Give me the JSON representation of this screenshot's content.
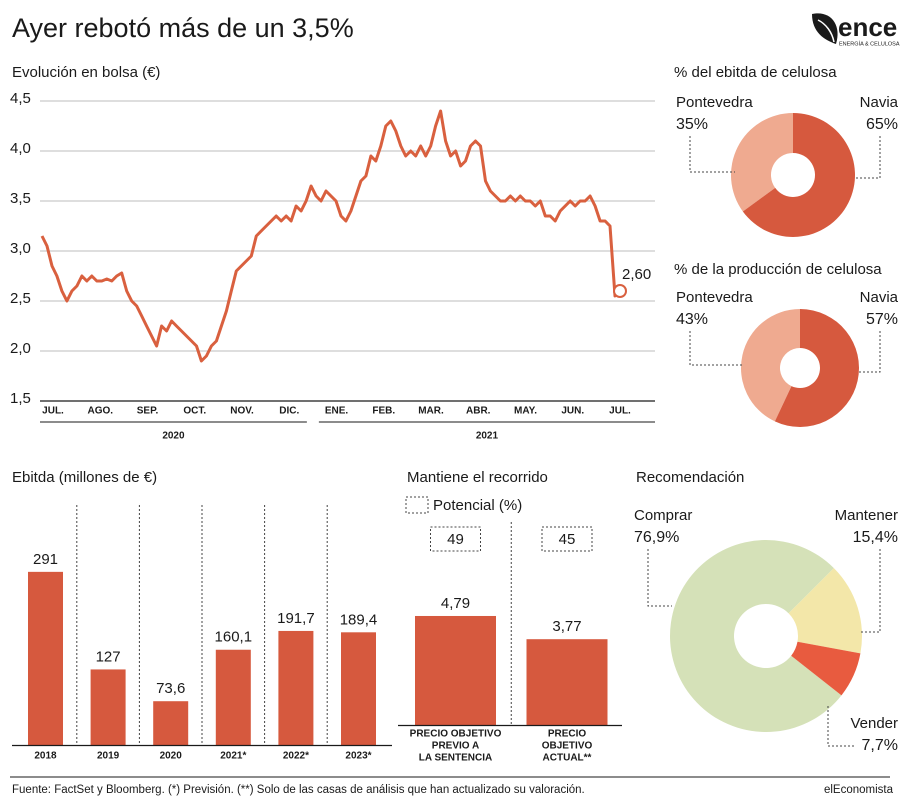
{
  "header": {
    "title": "Ayer rebotó más de un 3,5%",
    "logo": "ence",
    "logo_tagline": "ENERGÍA & CELULOSA"
  },
  "chart_data": [
    {
      "type": "line",
      "title": "Evolución en bolsa (€)",
      "months": [
        "JUL.",
        "AGO.",
        "SEP.",
        "OCT.",
        "NOV.",
        "DIC.",
        "ENE.",
        "FEB.",
        "MAR.",
        "ABR.",
        "MAY.",
        "JUN.",
        "JUL."
      ],
      "years": [
        "2020",
        "2021"
      ],
      "values": [
        3.15,
        3.05,
        2.85,
        2.75,
        2.6,
        2.5,
        2.6,
        2.65,
        2.75,
        2.7,
        2.75,
        2.7,
        2.7,
        2.72,
        2.7,
        2.75,
        2.78,
        2.6,
        2.5,
        2.45,
        2.35,
        2.25,
        2.15,
        2.05,
        2.25,
        2.2,
        2.3,
        2.25,
        2.2,
        2.15,
        2.1,
        2.05,
        1.9,
        1.95,
        2.05,
        2.1,
        2.25,
        2.4,
        2.6,
        2.8,
        2.85,
        2.9,
        2.95,
        3.15,
        3.2,
        3.25,
        3.3,
        3.35,
        3.3,
        3.35,
        3.3,
        3.45,
        3.4,
        3.5,
        3.65,
        3.55,
        3.5,
        3.6,
        3.55,
        3.5,
        3.35,
        3.3,
        3.4,
        3.55,
        3.7,
        3.75,
        3.95,
        3.9,
        4.05,
        4.25,
        4.3,
        4.2,
        4.05,
        3.95,
        4.0,
        3.95,
        4.05,
        3.95,
        4.05,
        4.25,
        4.4,
        4.1,
        3.95,
        4.0,
        3.85,
        3.9,
        4.05,
        4.1,
        4.05,
        3.7,
        3.6,
        3.55,
        3.5,
        3.5,
        3.55,
        3.5,
        3.55,
        3.5,
        3.5,
        3.45,
        3.5,
        3.35,
        3.35,
        3.3,
        3.4,
        3.45,
        3.5,
        3.45,
        3.5,
        3.5,
        3.55,
        3.45,
        3.3,
        3.3,
        3.25,
        2.55,
        2.6
      ],
      "last_value_label": "2,60",
      "color": "#d9603f",
      "ylim": [
        1.5,
        4.5
      ],
      "yticks": [
        {
          "value": 1.5,
          "label": "1,5"
        },
        {
          "value": 2.0,
          "label": "2,0"
        },
        {
          "value": 2.5,
          "label": "2,5"
        },
        {
          "value": 3.0,
          "label": "3,0"
        },
        {
          "value": 3.5,
          "label": "3,5"
        },
        {
          "value": 4.0,
          "label": "4,0"
        },
        {
          "value": 4.5,
          "label": "4,5"
        }
      ],
      "grid": true
    },
    {
      "type": "donut",
      "title": "% del ebitda de celulosa",
      "categories": [
        "Pontevedra",
        "Navia"
      ],
      "values": [
        35,
        65
      ],
      "value_labels": [
        "35%",
        "65%"
      ],
      "colors": [
        "#efaa90",
        "#d6593e"
      ]
    },
    {
      "type": "donut",
      "title": "% de la producción de celulosa",
      "categories": [
        "Pontevedra",
        "Navia"
      ],
      "values": [
        43,
        57
      ],
      "value_labels": [
        "43%",
        "57%"
      ],
      "colors": [
        "#efaa90",
        "#d6593e"
      ]
    },
    {
      "type": "bar",
      "title": "Ebitda (millones de €)",
      "categories": [
        "2018",
        "2019",
        "2020",
        "2021*",
        "2022*",
        "2023*"
      ],
      "values": [
        291,
        127,
        73.6,
        160.1,
        191.7,
        189.4
      ],
      "value_labels": [
        "291",
        "127",
        "73,6",
        "160,1",
        "191,7",
        "189,4"
      ],
      "color": "#d6593e"
    },
    {
      "type": "bar",
      "title": "Mantiene el recorrido",
      "categories": [
        [
          "PRECIO OBJETIVO",
          "PREVIO A",
          "LA SENTENCIA"
        ],
        [
          "PRECIO",
          "OBJETIVO",
          "ACTUAL**"
        ]
      ],
      "values": [
        4.79,
        3.77
      ],
      "value_labels": [
        "4,79",
        "3,77"
      ],
      "potential_label": "Potencial (%)",
      "potential": [
        49,
        45
      ],
      "color": "#d6593e"
    },
    {
      "type": "donut",
      "title": "Recomendación",
      "categories": [
        "Comprar",
        "Mantener",
        "Vender"
      ],
      "values": [
        76.9,
        15.4,
        7.7
      ],
      "value_labels": [
        "76,9%",
        "15,4%",
        "7,7%"
      ],
      "colors": [
        "#d5e1b8",
        "#f3e7a9",
        "#e85b3f"
      ]
    }
  ],
  "footer": {
    "source": "Fuente: FactSet y Bloomberg. (*) Previsión. (**) Solo de las casas de análisis que han actualizado su valoración.",
    "brand": "elEconomista"
  }
}
